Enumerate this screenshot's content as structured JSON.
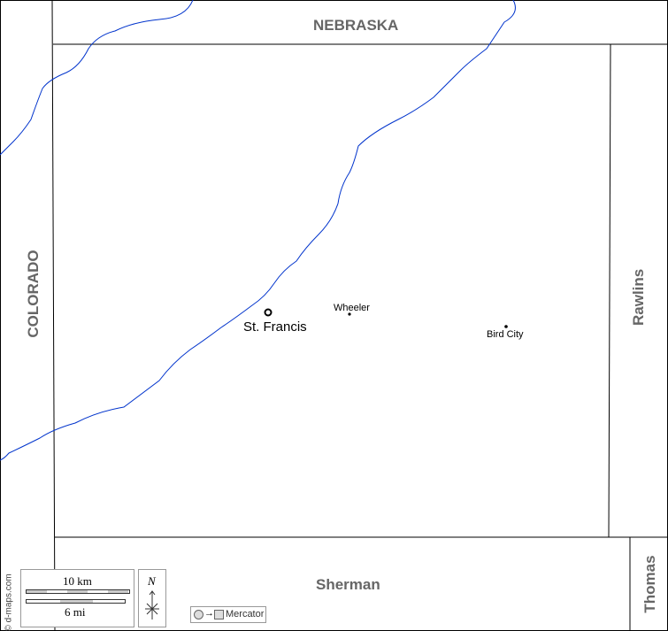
{
  "regions": {
    "north": "NEBRASKA",
    "west": "COLORADO",
    "east": "Rawlins",
    "south": "Sherman",
    "southeast": "Thomas"
  },
  "towns": [
    {
      "name": "St. Francis",
      "type": "county-seat"
    },
    {
      "name": "Wheeler",
      "type": "town"
    },
    {
      "name": "Bird City",
      "type": "town"
    }
  ],
  "scale": {
    "km": "10 km",
    "mi": "6 mi"
  },
  "north_arrow": "N",
  "projection": "Mercator",
  "credit": "© d-maps.com",
  "colors": {
    "river": "#0033cc",
    "border": "#000000",
    "label": "#666666"
  }
}
